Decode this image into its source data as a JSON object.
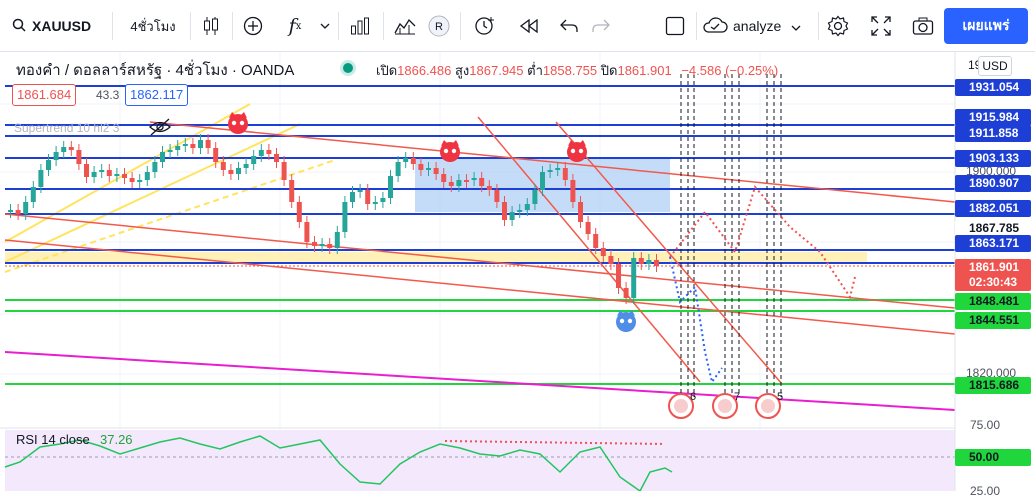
{
  "toolbar": {
    "symbol": "XAUUSD",
    "interval": "4ชั่วโมง",
    "analyze_label": "analyze",
    "publish_label": "เผยแพร่"
  },
  "legend": {
    "title": "ทองคำ / ดอลลาร์สหรัฐ · 4ชั่วโมง · OANDA",
    "open_label": "เปิด",
    "open_value": "1866.486",
    "high_label": "สูง",
    "high_value": "1867.945",
    "low_label": "ต่ำ",
    "low_value": "1858.755",
    "close_label": "ปิด",
    "close_value": "1861.901",
    "change": "−4.586 (−0.25%)",
    "sell_price": "1861.684",
    "spread": "43.3",
    "buy_price": "1862.117",
    "supertrend": "Supertrend 10 hl2 3"
  },
  "price_scale": {
    "currency": "USD",
    "top_label": "19",
    "label_1900": "1900.000",
    "label_1820": "1820.000",
    "tags": [
      {
        "text": "1931.054",
        "kind": "blue"
      },
      {
        "text": "1915.984",
        "kind": "blue"
      },
      {
        "text": "1911.858",
        "kind": "blue"
      },
      {
        "text": "1903.133",
        "kind": "blue"
      },
      {
        "text": "1890.907",
        "kind": "blue"
      },
      {
        "text": "1882.051",
        "kind": "blue"
      },
      {
        "text": "1867.785",
        "kind": "plain"
      },
      {
        "text": "1863.171",
        "kind": "blue"
      },
      {
        "text": "1861.901",
        "kind": "red"
      },
      {
        "text": "02:30:43",
        "kind": "red"
      },
      {
        "text": "1848.481",
        "kind": "green"
      },
      {
        "text": "1844.551",
        "kind": "green"
      },
      {
        "text": "1815.686",
        "kind": "green"
      }
    ]
  },
  "rsi": {
    "label": "RSI 14 close",
    "value": "37.26",
    "scale_75": "75.00",
    "scale_50": "50.00",
    "scale_25": "25.00"
  },
  "event_markers": [
    "6",
    "7",
    "5"
  ],
  "colors": {
    "accent": "#2962ff",
    "up": "#26a69a",
    "down": "#ef5350",
    "level_blue": "#1e3fd6",
    "level_green": "#1fd63d",
    "channel_red": "#f2594b",
    "magenta": "#e91ecf",
    "zone_yellow": "#fff1b8",
    "zone_blue": "#9ec5f5",
    "rsi_bg": "#f3e8fc"
  },
  "icons": [
    "candles-icon",
    "indicators-icon",
    "fx-icon",
    "compare-icon",
    "templates-icon",
    "replay-R-icon",
    "alert-icon",
    "rewind-icon",
    "undo-icon",
    "redo-icon",
    "layout-icon",
    "cloud-icon",
    "settings-icon",
    "fullscreen-icon",
    "camera-icon",
    "tradingview-cat-icon"
  ]
}
